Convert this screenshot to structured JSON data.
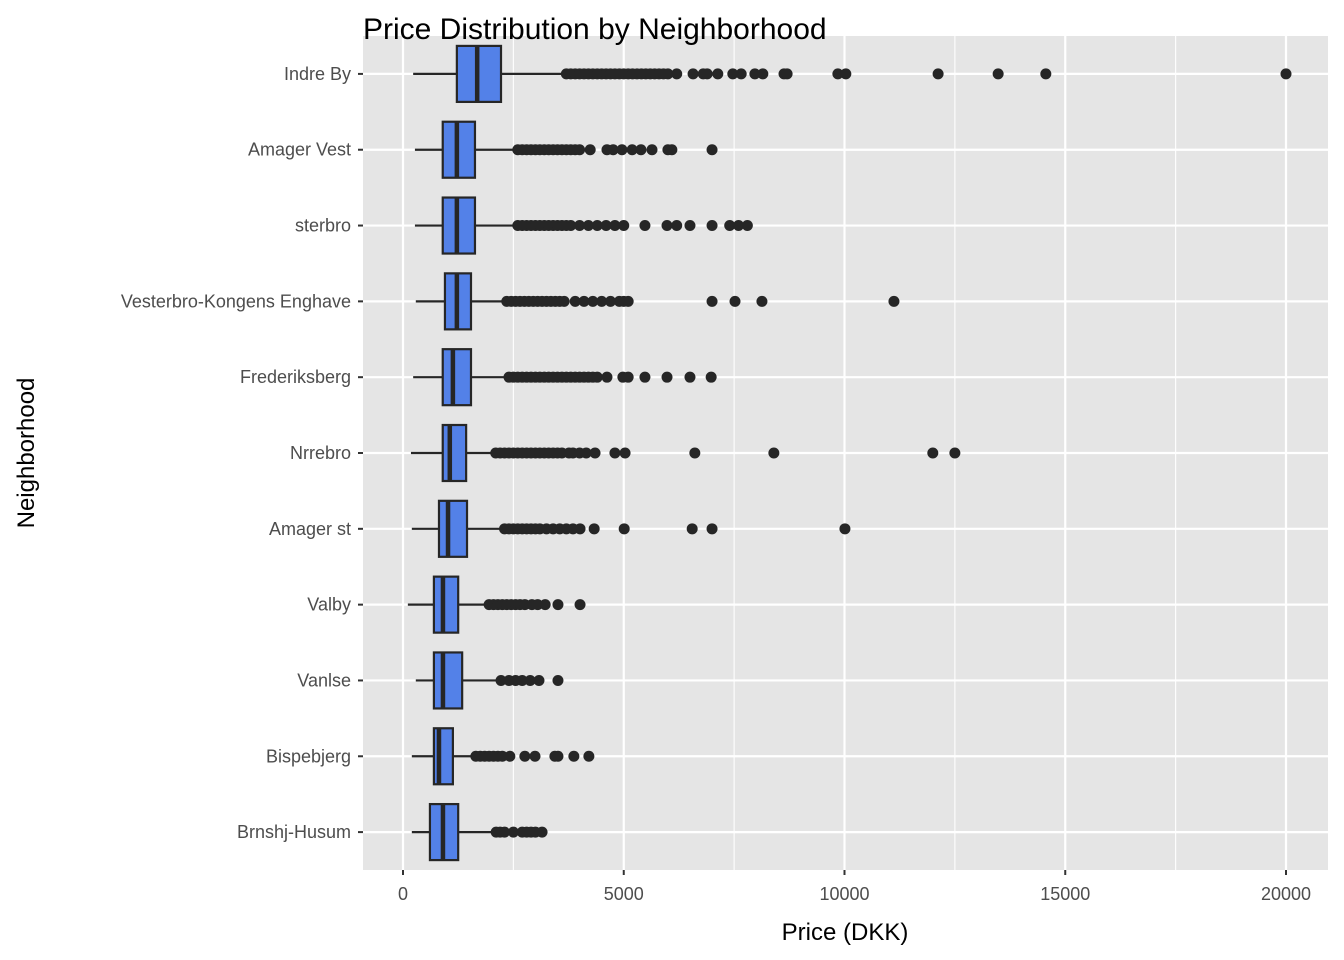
{
  "chart_data": {
    "type": "boxplot",
    "orientation": "horizontal",
    "title": "Price Distribution by Neighborhood",
    "xlabel": "Price (DKK)",
    "ylabel": "Neighborhood",
    "xlim": [
      -900,
      21000
    ],
    "xticks": [
      0,
      5000,
      10000,
      15000,
      20000
    ],
    "xtick_labels": [
      "0",
      "5000",
      "10000",
      "15000",
      "20000"
    ],
    "grid": true,
    "colors": {
      "fill": "#5381E8",
      "stroke": "#262626",
      "panel": "#E5E5E5",
      "grid": "#FFFFFF"
    },
    "series": [
      {
        "name": "Indre By",
        "whisker_low": 230,
        "q1": 1220,
        "median": 1680,
        "q3": 2220,
        "whisker_high": 3690,
        "outliers": [
          3700,
          3800,
          3900,
          4000,
          4100,
          4200,
          4300,
          4400,
          4500,
          4600,
          4700,
          4800,
          4900,
          5000,
          5100,
          5200,
          5300,
          5400,
          5500,
          5600,
          5700,
          5800,
          5900,
          6000,
          6200,
          6570,
          6800,
          6890,
          7130,
          7470,
          7660,
          7970,
          8150,
          8630,
          8700,
          9850,
          10030,
          12120,
          13480,
          14560,
          20000
        ]
      },
      {
        "name": "Amager Vest",
        "whisker_low": 270,
        "q1": 900,
        "median": 1220,
        "q3": 1630,
        "whisker_high": 2580,
        "outliers": [
          2600,
          2700,
          2800,
          2900,
          3000,
          3100,
          3200,
          3300,
          3400,
          3500,
          3600,
          3700,
          3800,
          3900,
          4000,
          4240,
          4620,
          4760,
          4960,
          5190,
          5390,
          5640,
          6000,
          6090,
          7000
        ]
      },
      {
        "name": "sterbro",
        "whisker_low": 270,
        "q1": 900,
        "median": 1220,
        "q3": 1630,
        "whisker_high": 2580,
        "outliers": [
          2600,
          2700,
          2800,
          2900,
          3000,
          3100,
          3200,
          3300,
          3400,
          3500,
          3600,
          3700,
          3800,
          4000,
          4200,
          4400,
          4600,
          4800,
          5000,
          5480,
          5980,
          6200,
          6500,
          7000,
          7400,
          7600,
          7800
        ]
      },
      {
        "name": "Vesterbro-Kongens Enghave",
        "whisker_low": 290,
        "q1": 950,
        "median": 1220,
        "q3": 1540,
        "whisker_high": 2330,
        "outliers": [
          2350,
          2450,
          2550,
          2650,
          2750,
          2850,
          2950,
          3050,
          3150,
          3250,
          3350,
          3450,
          3550,
          3650,
          3900,
          4100,
          4300,
          4500,
          4700,
          4900,
          5000,
          5100,
          7000,
          7520,
          8130,
          11120
        ]
      },
      {
        "name": "Frederiksberg",
        "whisker_low": 230,
        "q1": 900,
        "median": 1130,
        "q3": 1540,
        "whisker_high": 2400,
        "outliers": [
          2400,
          2500,
          2600,
          2700,
          2800,
          2900,
          3000,
          3100,
          3200,
          3300,
          3400,
          3500,
          3600,
          3700,
          3800,
          3900,
          4000,
          4100,
          4200,
          4300,
          4400,
          4620,
          4980,
          5100,
          5480,
          5980,
          6500,
          6980
        ]
      },
      {
        "name": "Nrrebro",
        "whisker_low": 180,
        "q1": 900,
        "median": 1060,
        "q3": 1430,
        "whisker_high": 2100,
        "outliers": [
          2100,
          2200,
          2300,
          2400,
          2500,
          2600,
          2700,
          2800,
          2900,
          3000,
          3100,
          3200,
          3300,
          3400,
          3500,
          3600,
          3760,
          3850,
          4000,
          4150,
          4350,
          4800,
          5030,
          6610,
          8400,
          12000,
          12500
        ]
      },
      {
        "name": "Amager st",
        "whisker_low": 200,
        "q1": 815,
        "median": 1020,
        "q3": 1450,
        "whisker_high": 2240,
        "outliers": [
          2300,
          2400,
          2500,
          2600,
          2700,
          2800,
          2900,
          3000,
          3100,
          3250,
          3400,
          3550,
          3700,
          3850,
          4010,
          4330,
          5010,
          6550,
          7000,
          10010
        ]
      },
      {
        "name": "Valby",
        "whisker_low": 110,
        "q1": 700,
        "median": 905,
        "q3": 1250,
        "whisker_high": 1900,
        "outliers": [
          1950,
          2050,
          2150,
          2250,
          2350,
          2450,
          2550,
          2650,
          2760,
          2920,
          3050,
          3220,
          3510,
          4010
        ]
      },
      {
        "name": "Vanlse",
        "whisker_low": 290,
        "q1": 700,
        "median": 905,
        "q3": 1340,
        "whisker_high": 2220,
        "outliers": [
          2220,
          2400,
          2550,
          2700,
          2880,
          3080,
          3510
        ]
      },
      {
        "name": "Bispebjerg",
        "whisker_low": 200,
        "q1": 700,
        "median": 815,
        "q3": 1130,
        "whisker_high": 1610,
        "outliers": [
          1650,
          1750,
          1850,
          1950,
          2050,
          2150,
          2250,
          2420,
          2760,
          2990,
          3440,
          3510,
          3870,
          4210
        ]
      },
      {
        "name": "Brnshj-Husum",
        "whisker_low": 200,
        "q1": 610,
        "median": 905,
        "q3": 1250,
        "whisker_high": 2020,
        "outliers": [
          2110,
          2200,
          2300,
          2500,
          2700,
          2800,
          2900,
          3000,
          3150
        ]
      }
    ]
  }
}
